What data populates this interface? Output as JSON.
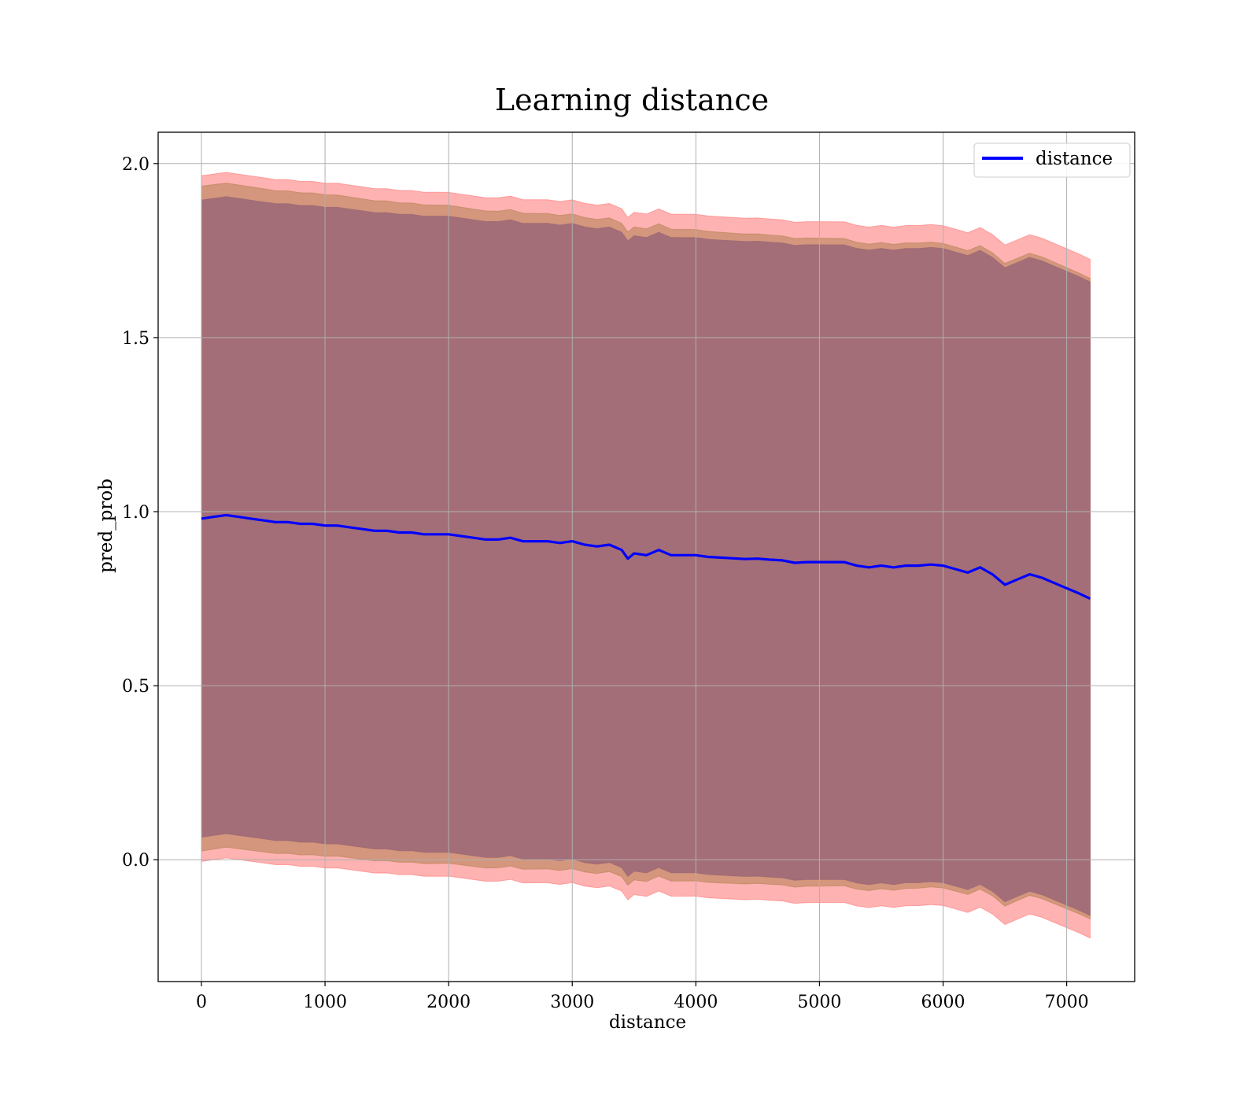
{
  "chart_data": {
    "type": "line",
    "title": "Learning distance",
    "xlabel": "distance",
    "ylabel": "pred_prob",
    "xlim": [
      -350,
      7550
    ],
    "ylim": [
      -0.35,
      2.09
    ],
    "xticks": [
      0,
      1000,
      2000,
      3000,
      4000,
      5000,
      6000,
      7000
    ],
    "yticks": [
      0.0,
      0.5,
      1.0,
      1.5,
      2.0
    ],
    "xtick_labels": [
      "0",
      "1000",
      "2000",
      "3000",
      "4000",
      "5000",
      "6000",
      "7000"
    ],
    "ytick_labels": [
      "0.0",
      "0.5",
      "1.0",
      "1.5",
      "2.0"
    ],
    "grid": true,
    "legend_position": "top-right",
    "series": [
      {
        "name": "distance",
        "color": "#0000ff",
        "x": [
          0,
          100,
          200,
          300,
          400,
          500,
          600,
          700,
          800,
          900,
          1000,
          1100,
          1200,
          1300,
          1400,
          1500,
          1600,
          1700,
          1800,
          1900,
          2000,
          2100,
          2200,
          2300,
          2400,
          2500,
          2600,
          2700,
          2800,
          2900,
          3000,
          3100,
          3200,
          3300,
          3400,
          3450,
          3500,
          3600,
          3700,
          3800,
          3900,
          4000,
          4100,
          4200,
          4300,
          4400,
          4500,
          4600,
          4700,
          4800,
          4900,
          5000,
          5100,
          5200,
          5300,
          5400,
          5500,
          5600,
          5700,
          5800,
          5900,
          6000,
          6100,
          6200,
          6300,
          6400,
          6500,
          6600,
          6700,
          6800,
          6900,
          7000,
          7100,
          7190
        ],
        "y": [
          0.98,
          0.985,
          0.99,
          0.985,
          0.98,
          0.975,
          0.97,
          0.97,
          0.965,
          0.965,
          0.96,
          0.96,
          0.955,
          0.95,
          0.945,
          0.945,
          0.94,
          0.94,
          0.935,
          0.935,
          0.935,
          0.93,
          0.925,
          0.92,
          0.92,
          0.925,
          0.915,
          0.915,
          0.915,
          0.91,
          0.915,
          0.905,
          0.9,
          0.905,
          0.89,
          0.865,
          0.88,
          0.875,
          0.89,
          0.875,
          0.875,
          0.875,
          0.87,
          0.868,
          0.866,
          0.864,
          0.865,
          0.862,
          0.86,
          0.853,
          0.855,
          0.855,
          0.855,
          0.855,
          0.845,
          0.84,
          0.845,
          0.84,
          0.845,
          0.845,
          0.848,
          0.845,
          0.835,
          0.825,
          0.84,
          0.82,
          0.79,
          0.805,
          0.82,
          0.81,
          0.795,
          0.78,
          0.765,
          0.75
        ]
      }
    ],
    "bands": [
      {
        "color": "#ff6666",
        "opacity": 0.5,
        "half_width": [
          0.985,
          0.975
        ]
      },
      {
        "color": "#b08050",
        "opacity": 0.55,
        "half_width": [
          0.955,
          0.92
        ]
      },
      {
        "color": "#9e6a76",
        "opacity": 0.92,
        "half_width": [
          0.915,
          0.91
        ]
      }
    ]
  }
}
